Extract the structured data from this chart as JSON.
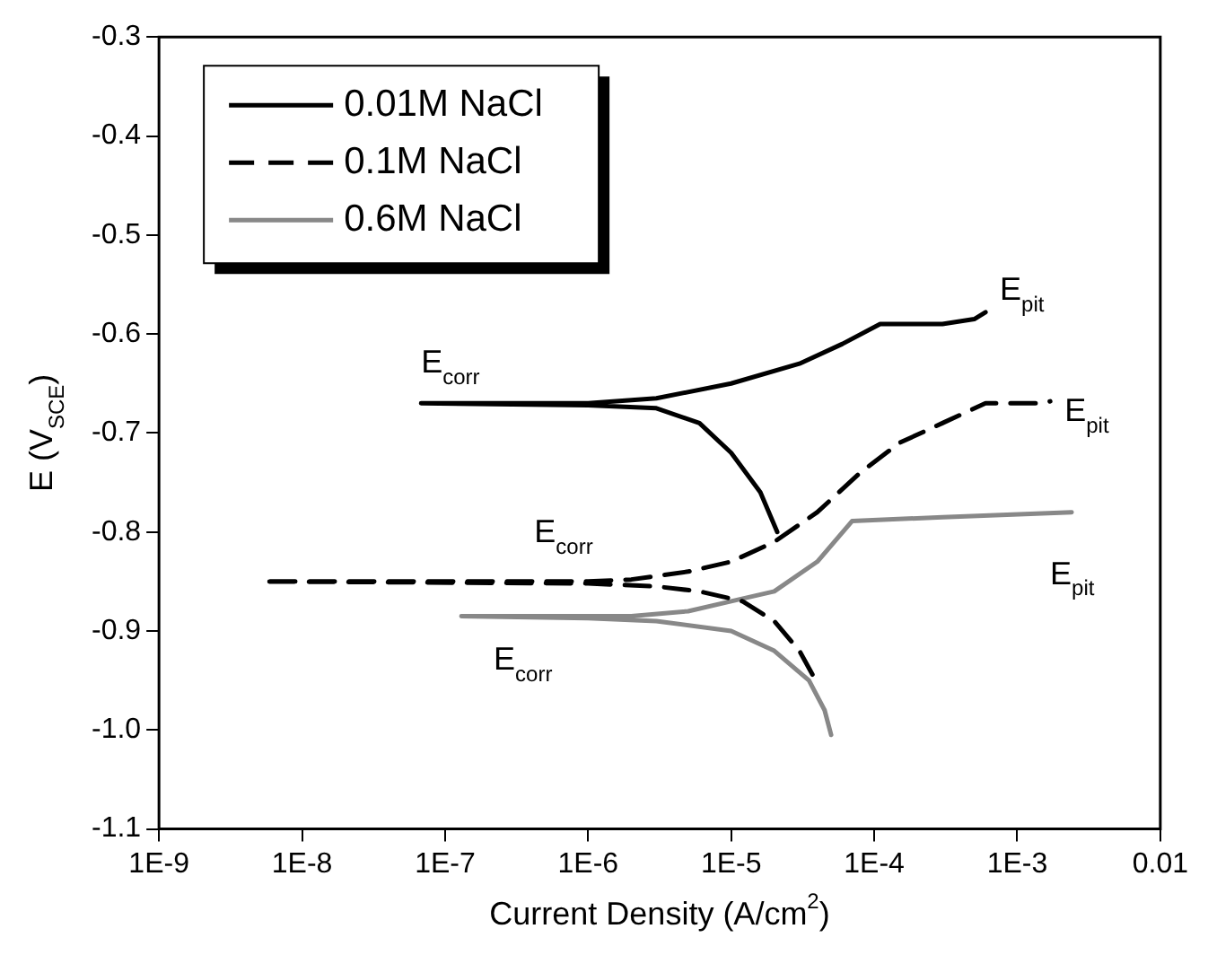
{
  "chart_data": {
    "type": "line",
    "xlabel": "Current Density (A/cm$^{2}$)",
    "ylabel": "E (V$_{SCE}$)",
    "log": "x",
    "grid": false,
    "legend": "top left",
    "marker": "none",
    "xlim": [
      1e-09,
      0.01
    ],
    "xticks": [
      {
        "value": 1e-09,
        "label": "1E-9"
      },
      {
        "value": 1e-08,
        "label": "1E-8"
      },
      {
        "value": 1e-07,
        "label": "1E-7"
      },
      {
        "value": 1e-06,
        "label": "1E-6"
      },
      {
        "value": 1e-05,
        "label": "1E-5"
      },
      {
        "value": 0.0001,
        "label": "1E-4"
      },
      {
        "value": 0.001,
        "label": "1E-3"
      },
      0.01
    ],
    "ylim": [
      -1.1,
      -0.3
    ],
    "yticks": [
      -1.1,
      {
        "value": -1,
        "label": "-1.0"
      },
      -0.9,
      -0.8,
      -0.7,
      -0.6,
      -0.5,
      -0.4,
      -0.3
    ],
    "series": [
      {
        "name": "0.01M NaCl",
        "color": "#000000",
        "line_style": "solid",
        "x": [
          2.1e-05,
          1.6e-05,
          1e-05,
          6e-06,
          3e-06,
          1e-06,
          6.8e-08,
          1e-06,
          3e-06,
          1e-05,
          3e-05,
          6e-05,
          0.00011,
          0.0003,
          0.0005,
          0.0006
        ],
        "values": [
          -0.8,
          -0.76,
          -0.72,
          -0.69,
          -0.675,
          -0.672,
          -0.67,
          -0.67,
          -0.665,
          -0.65,
          -0.63,
          -0.61,
          -0.59,
          -0.59,
          -0.585,
          -0.578
        ]
      },
      {
        "name": "0.1M NaCl",
        "color": "#000000",
        "line_style": "dashed",
        "x": [
          3.7e-05,
          3e-05,
          2e-05,
          1.2e-05,
          6e-06,
          3e-06,
          1e-06,
          5.3e-09,
          1e-06,
          2e-06,
          5e-06,
          1e-05,
          2e-05,
          4e-05,
          8e-05,
          0.00015,
          0.0003,
          0.0006,
          0.0015,
          0.0017
        ],
        "values": [
          -0.944,
          -0.92,
          -0.89,
          -0.87,
          -0.86,
          -0.855,
          -0.852,
          -0.85,
          -0.85,
          -0.848,
          -0.84,
          -0.83,
          -0.81,
          -0.78,
          -0.74,
          -0.71,
          -0.69,
          -0.67,
          -0.67,
          -0.668
        ]
      },
      {
        "name": "0.6M NaCl",
        "color": "#888888",
        "line_style": "solid",
        "x": [
          5e-05,
          4.5e-05,
          3.5e-05,
          2e-05,
          1e-05,
          3e-06,
          1e-06,
          1.3e-07,
          1e-06,
          2e-06,
          5e-06,
          1e-05,
          2e-05,
          4e-05,
          7e-05,
          0.0003,
          0.0024
        ],
        "values": [
          -1.005,
          -0.98,
          -0.95,
          -0.92,
          -0.9,
          -0.89,
          -0.887,
          -0.885,
          -0.885,
          -0.885,
          -0.88,
          -0.87,
          -0.86,
          -0.83,
          -0.789,
          -0.785,
          -0.78
        ]
      }
    ],
    "annotations": [
      {
        "text": "E$_{corr}$",
        "x": 6.8e-08,
        "y": -0.67
      },
      {
        "text": "E$_{pit}$",
        "x": 0.0006,
        "y": -0.578
      },
      {
        "text": "E$_{corr}$",
        "x": 1e-06,
        "y": -0.852
      },
      {
        "text": "E$_{pit}$",
        "x": 0.0017,
        "y": -0.668
      },
      {
        "text": "E$_{corr}$",
        "x": 1.3e-07,
        "y": -0.885
      },
      {
        "text": "E$_{pit}$",
        "x": 0.0024,
        "y": -0.78
      }
    ]
  }
}
